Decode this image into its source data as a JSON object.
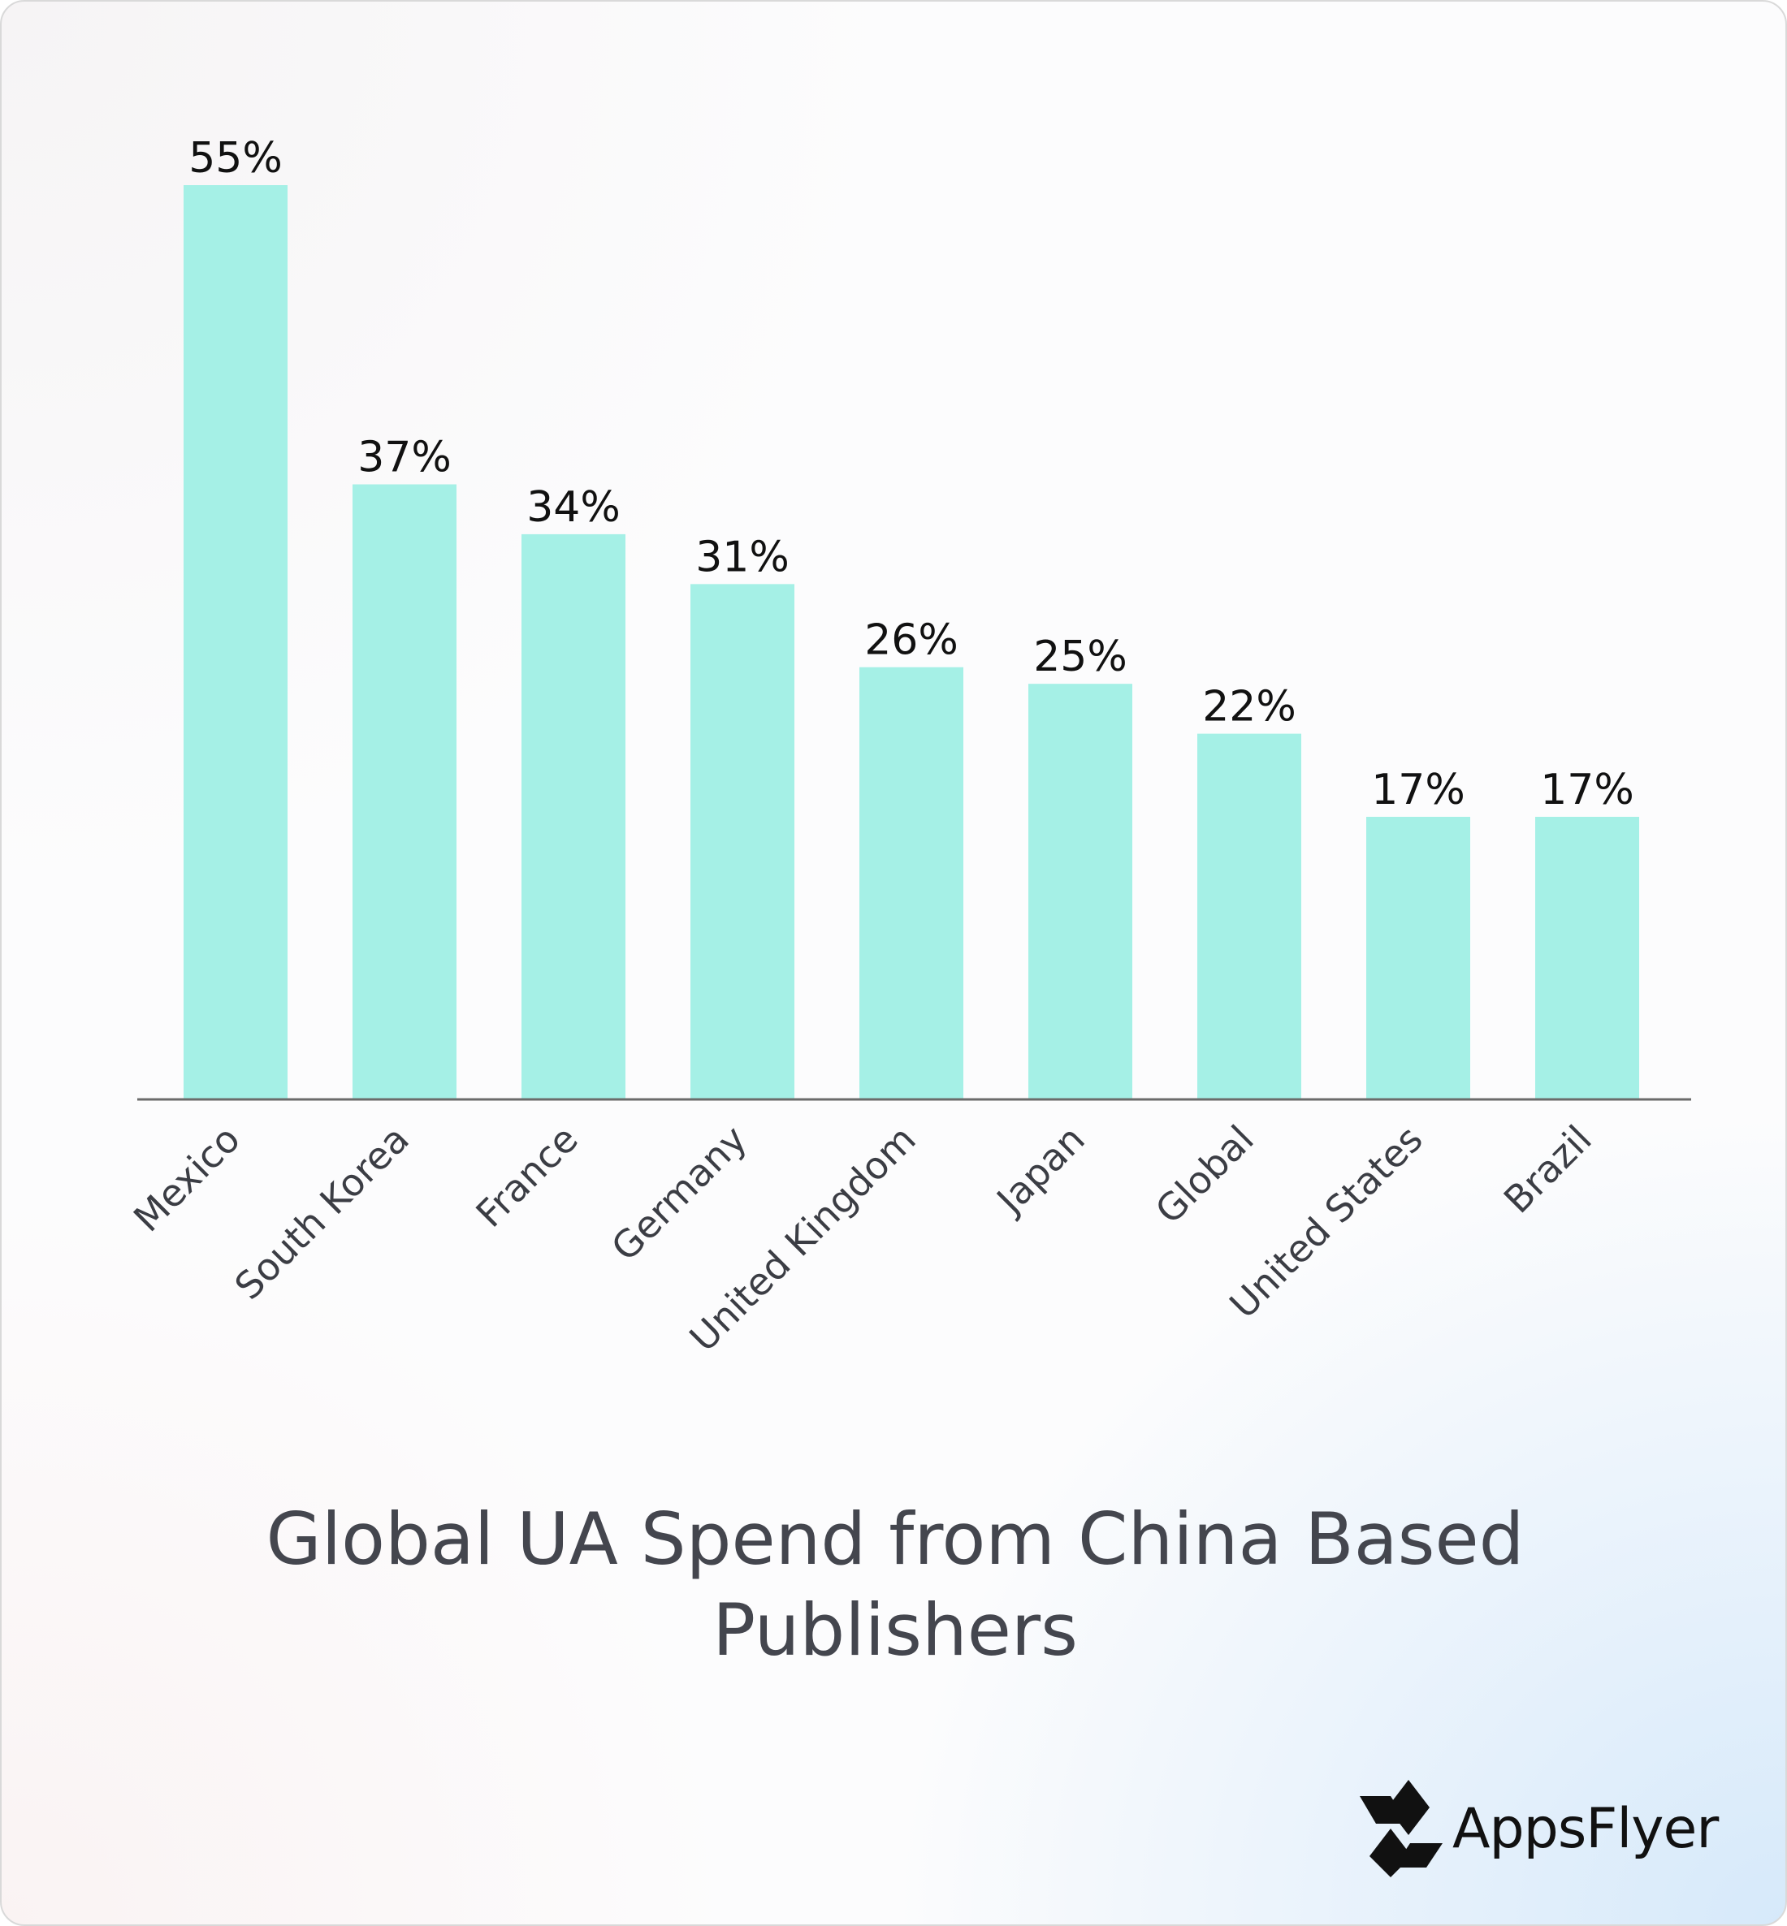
{
  "chart_data": {
    "type": "bar",
    "title": "Global UA Spend from China Based Publishers",
    "categories": [
      "Mexico",
      "South Korea",
      "France",
      "Germany",
      "United Kingdom",
      "Japan",
      "Global",
      "United States",
      "Brazil"
    ],
    "values": [
      55,
      37,
      34,
      31,
      26,
      25,
      22,
      17,
      17
    ],
    "value_labels": [
      "55%",
      "37%",
      "34%",
      "31%",
      "26%",
      "25%",
      "22%",
      "17%",
      "17%"
    ],
    "xlabel": "",
    "ylabel": "",
    "ylim": [
      0,
      55
    ],
    "grid": false,
    "legend": "none",
    "bar_color": "#a5f0e6",
    "axis_color": "#6b6b6b"
  },
  "brand": {
    "name": "AppsFlyer"
  }
}
